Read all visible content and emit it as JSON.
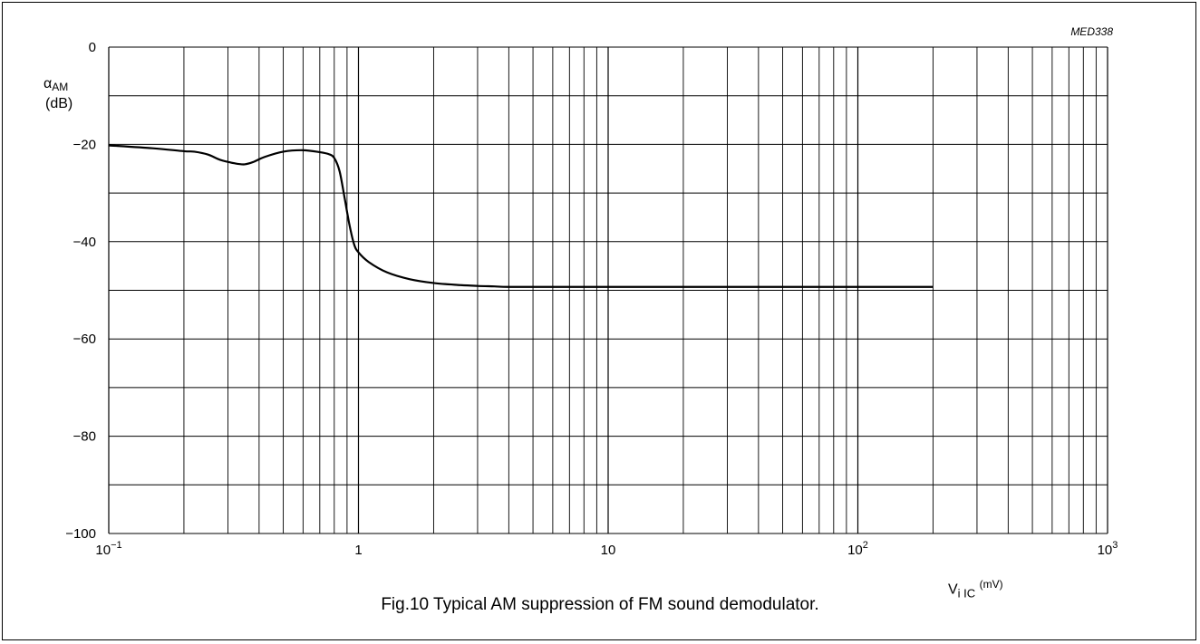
{
  "figure": {
    "id_label": "MED338",
    "caption": "Fig.10  Typical AM suppression of FM sound demodulator."
  },
  "chart_data": {
    "type": "line",
    "x_scale": "log",
    "xlim": [
      0.1,
      1000
    ],
    "ylim": [
      -100,
      0
    ],
    "grid": true,
    "ylabel_symbol": "α",
    "ylabel_subscript": "AM",
    "ylabel_unit": "(dB)",
    "xlabel_symbol": "V",
    "xlabel_subscript": "i IC",
    "xlabel_unit": "(mV)",
    "x_ticks": [
      {
        "value": 0.1,
        "base": "10",
        "exp": "−1"
      },
      {
        "value": 1,
        "base": "1",
        "exp": ""
      },
      {
        "value": 10,
        "base": "10",
        "exp": ""
      },
      {
        "value": 100,
        "base": "10",
        "exp": "2"
      },
      {
        "value": 1000,
        "base": "10",
        "exp": "3"
      }
    ],
    "y_ticks": [
      {
        "value": 0,
        "label": "0"
      },
      {
        "value": -20,
        "label": "−20"
      },
      {
        "value": -40,
        "label": "−40"
      },
      {
        "value": -60,
        "label": "−60"
      },
      {
        "value": -80,
        "label": "−80"
      },
      {
        "value": -100,
        "label": "−100"
      }
    ],
    "series": [
      {
        "x": [
          0.1,
          0.15,
          0.2,
          0.22,
          0.25,
          0.28,
          0.32,
          0.35,
          0.38,
          0.42,
          0.5,
          0.6,
          0.7,
          0.76,
          0.8,
          0.84,
          0.88,
          0.92,
          0.96,
          1.0,
          1.1,
          1.3,
          1.6,
          2.0,
          2.5,
          3.0,
          3.5,
          4.0,
          6,
          10,
          20,
          50,
          100,
          200
        ],
        "y": [
          -20.2,
          -20.8,
          -21.4,
          -21.5,
          -22.1,
          -23.2,
          -23.9,
          -24.1,
          -23.6,
          -22.6,
          -21.5,
          -21.2,
          -21.6,
          -22.0,
          -22.8,
          -25.5,
          -31.0,
          -36.5,
          -40.5,
          -42.2,
          -44.2,
          -46.3,
          -47.7,
          -48.5,
          -48.9,
          -49.1,
          -49.2,
          -49.3,
          -49.3,
          -49.3,
          -49.3,
          -49.3,
          -49.3,
          -49.3
        ]
      }
    ]
  }
}
